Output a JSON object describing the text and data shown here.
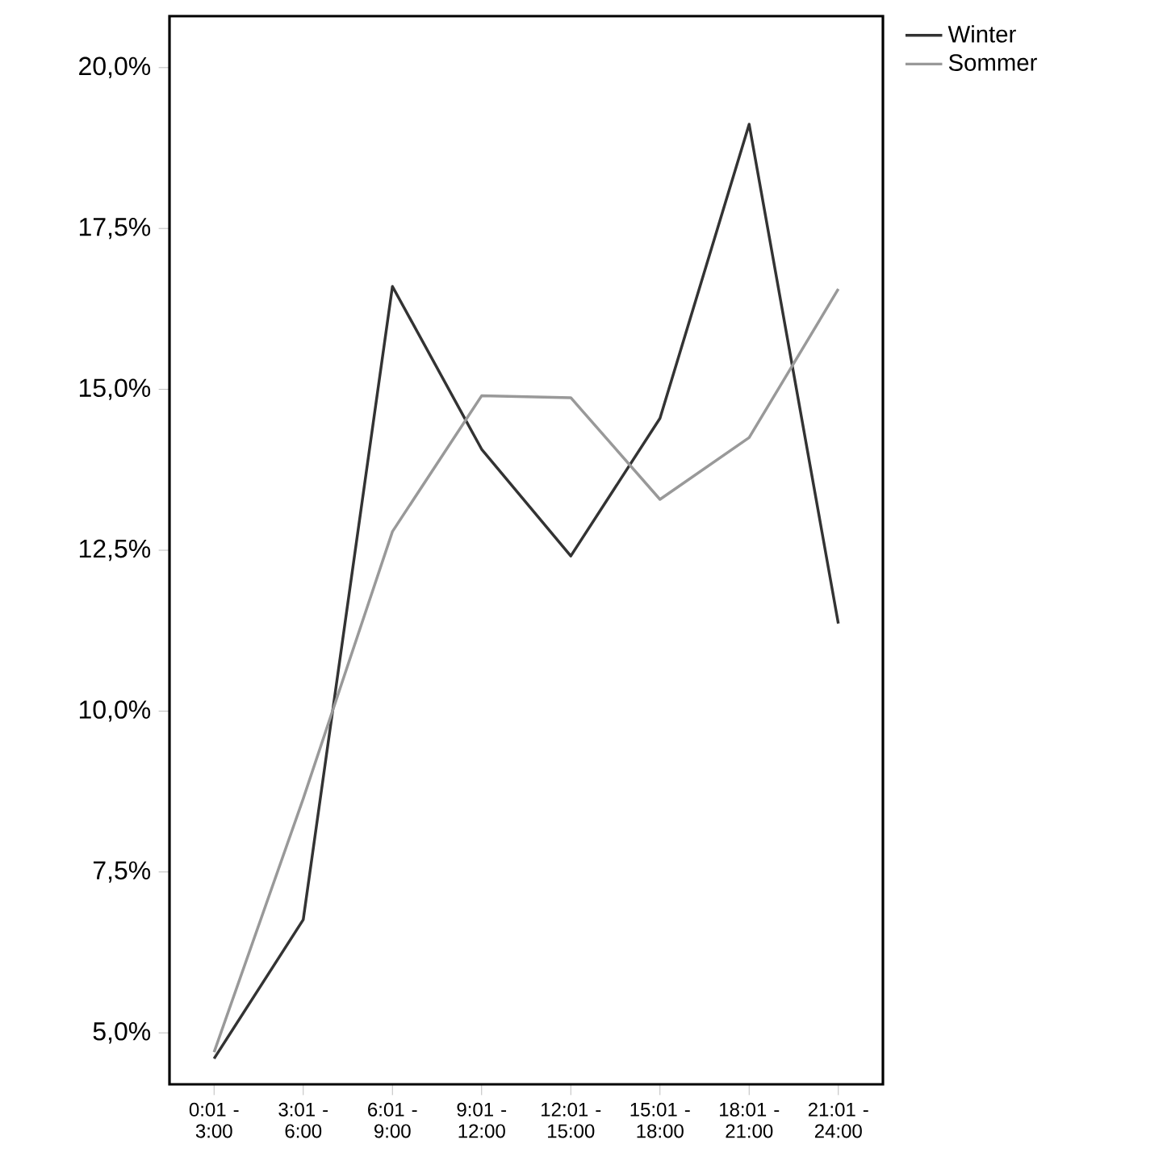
{
  "chart_data": {
    "type": "line",
    "categories": [
      "0:01 - 3:00",
      "3:01 - 6:00",
      "6:01 - 9:00",
      "9:01 - 12:00",
      "12:01 - 15:00",
      "15:01 - 18:00",
      "18:01 - 21:00",
      "21:01 - 24:00"
    ],
    "series": [
      {
        "name": "Winter",
        "color": "#333333",
        "values": [
          4.6,
          6.76,
          16.6,
          14.07,
          12.41,
          14.55,
          19.12,
          11.36
        ]
      },
      {
        "name": "Sommer",
        "color": "#999999",
        "values": [
          4.7,
          8.64,
          12.79,
          14.9,
          14.87,
          13.29,
          14.25,
          16.56
        ]
      }
    ],
    "ylim": [
      4.2,
      20.8
    ],
    "yticks": [
      {
        "value": 5,
        "label": "5,0%"
      },
      {
        "value": 7.5,
        "label": "7,5%"
      },
      {
        "value": 10,
        "label": "10,0%"
      },
      {
        "value": 12.5,
        "label": "12,5%"
      },
      {
        "value": 15,
        "label": "15,0%"
      },
      {
        "value": 17.5,
        "label": "17,5%"
      },
      {
        "value": 20,
        "label": "20,0%"
      }
    ],
    "grid": false,
    "legend": "top right",
    "marker": "none",
    "line_style": "solid"
  }
}
